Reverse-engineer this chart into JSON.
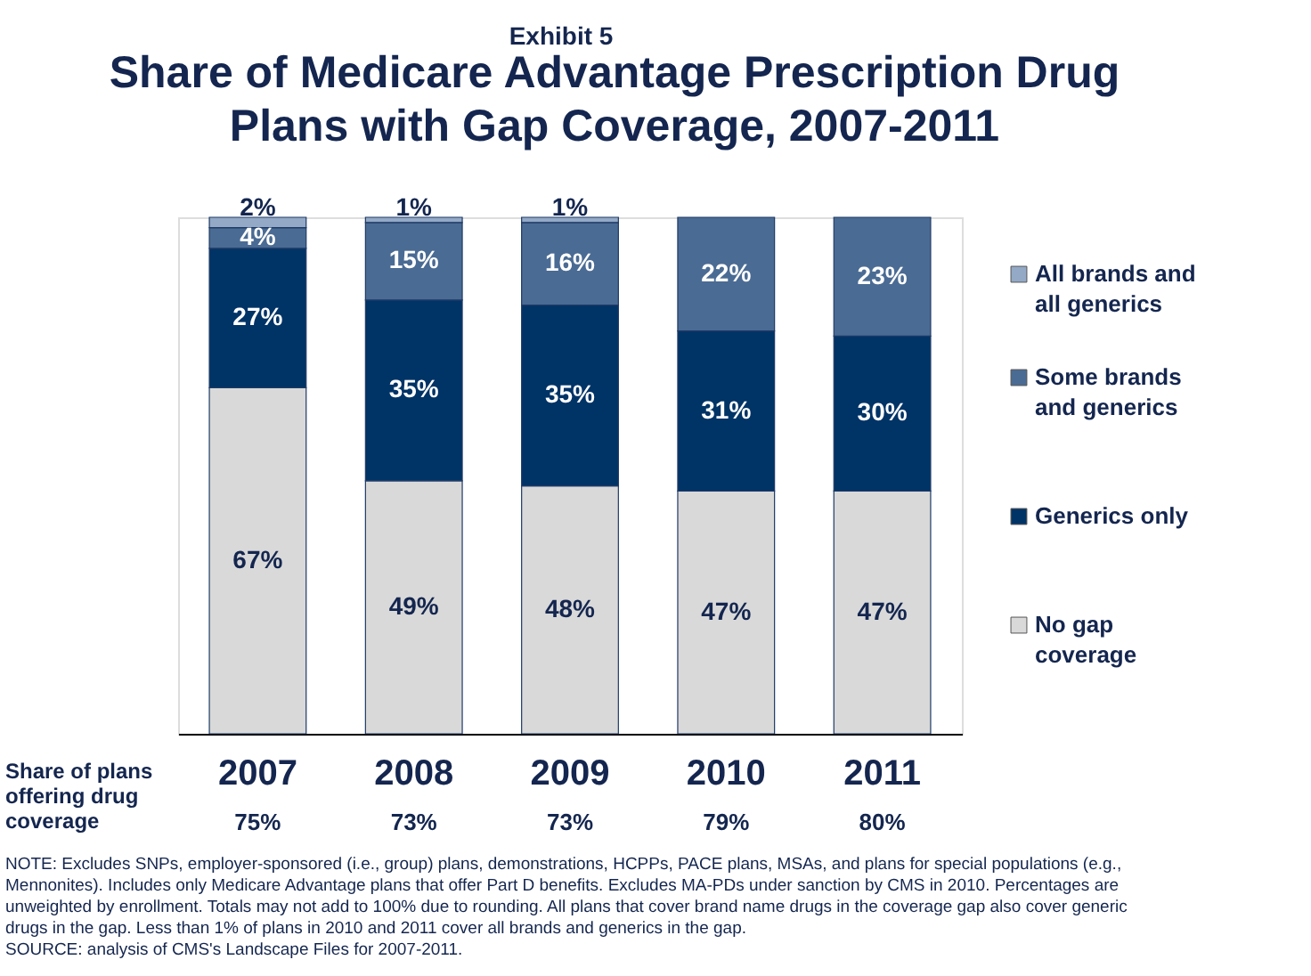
{
  "chart_data": {
    "type": "bar",
    "stacked": true,
    "title": "Share of Medicare Advantage Prescription Drug Plans with Gap Coverage, 2007-2011",
    "categories": [
      "2007",
      "2008",
      "2009",
      "2010",
      "2011"
    ],
    "series": [
      {
        "name": "No gap coverage",
        "color": "#d9d9d9",
        "values": [
          67,
          49,
          48,
          47,
          47
        ],
        "value_labels": [
          "67%",
          "49%",
          "48%",
          "47%",
          "47%"
        ]
      },
      {
        "name": "Generics only",
        "color": "#003366",
        "values": [
          27,
          35,
          35,
          31,
          30
        ],
        "value_labels": [
          "27%",
          "35%",
          "35%",
          "31%",
          "30%"
        ]
      },
      {
        "name": "Some brands and generics",
        "color": "#4a6b93",
        "values": [
          4,
          15,
          16,
          22,
          23
        ],
        "value_labels": [
          "4%",
          "15%",
          "16%",
          "22%",
          "23%"
        ]
      },
      {
        "name": "All brands and all generics",
        "color": "#93a9c6",
        "values": [
          2,
          1,
          1,
          null,
          null
        ],
        "value_labels": [
          "2%",
          "1%",
          "1%",
          null,
          null
        ]
      }
    ],
    "legend": "right",
    "tick_labels": "x",
    "annotations": [
      "Exhibit 5",
      "Share of plans offering drug coverage",
      "75%",
      "73%",
      "73%",
      "79%",
      "80%",
      "NOTE: Excludes SNPs, employer-sponsored (i.e., group) plans, demonstrations, HCPPs, PACE plans, MSAs, and plans for special populations (e.g., Mennonites).  Includes only Medicare Advantage plans that offer Part D benefits. Excludes MA-PDs under sanction by CMS in 2010. Percentages are unweighted by enrollment. Totals may not add to 100% due to rounding. All plans that cover brand name drugs in the coverage gap also cover generic drugs in the gap.  Less than 1% of plans in 2010 and 2011 cover all brands and generics in the gap.",
      "SOURCE: analysis of CMS's Landscape Files for 2007-2011."
    ]
  }
}
